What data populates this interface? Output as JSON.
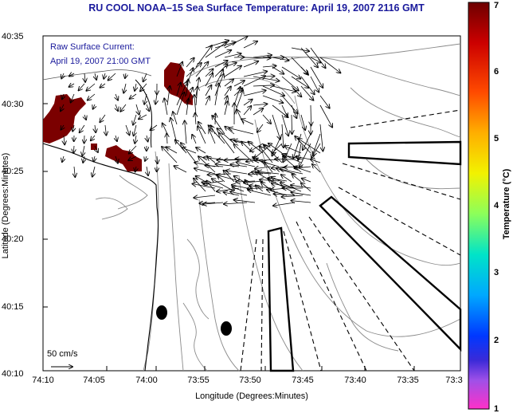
{
  "title": "RU COOL  NOAA–15  Sea Surface Temperature:  April 19, 2007 2116 GMT",
  "annotation": {
    "line1": "Raw Surface Current:",
    "line2": "April 19, 2007 21:00 GMT"
  },
  "axes": {
    "xlabel": "Longitude (Degrees:Minutes)",
    "ylabel": "Latitude (Degrees:Minutes)",
    "x_ticks": [
      "74:10",
      "74:05",
      "74:00",
      "73:55",
      "73:50",
      "73:45",
      "73:40",
      "73:35",
      "73:3"
    ],
    "y_ticks": [
      "40:35",
      "40:30",
      "40:25",
      "40:20",
      "40:15",
      "40:10"
    ]
  },
  "scale_label": "50 cm/s",
  "colorbar": {
    "label": "Temperature (°C)",
    "ticks": [
      "7",
      "6",
      "5",
      "4",
      "3",
      "2",
      "1"
    ],
    "colors": [
      "#7b0000",
      "#d40000",
      "#ff5000",
      "#ffb000",
      "#ffff00",
      "#a0ff50",
      "#00e0c0",
      "#00b0ff",
      "#0040ff",
      "#2020d0",
      "#8040e0",
      "#e040e0",
      "#ff30c0"
    ]
  },
  "colors": {
    "title": "#1a1a9c",
    "annotation": "#1a1a9c",
    "land_warm": "#7b0000",
    "contour": "#8a8a8a"
  }
}
